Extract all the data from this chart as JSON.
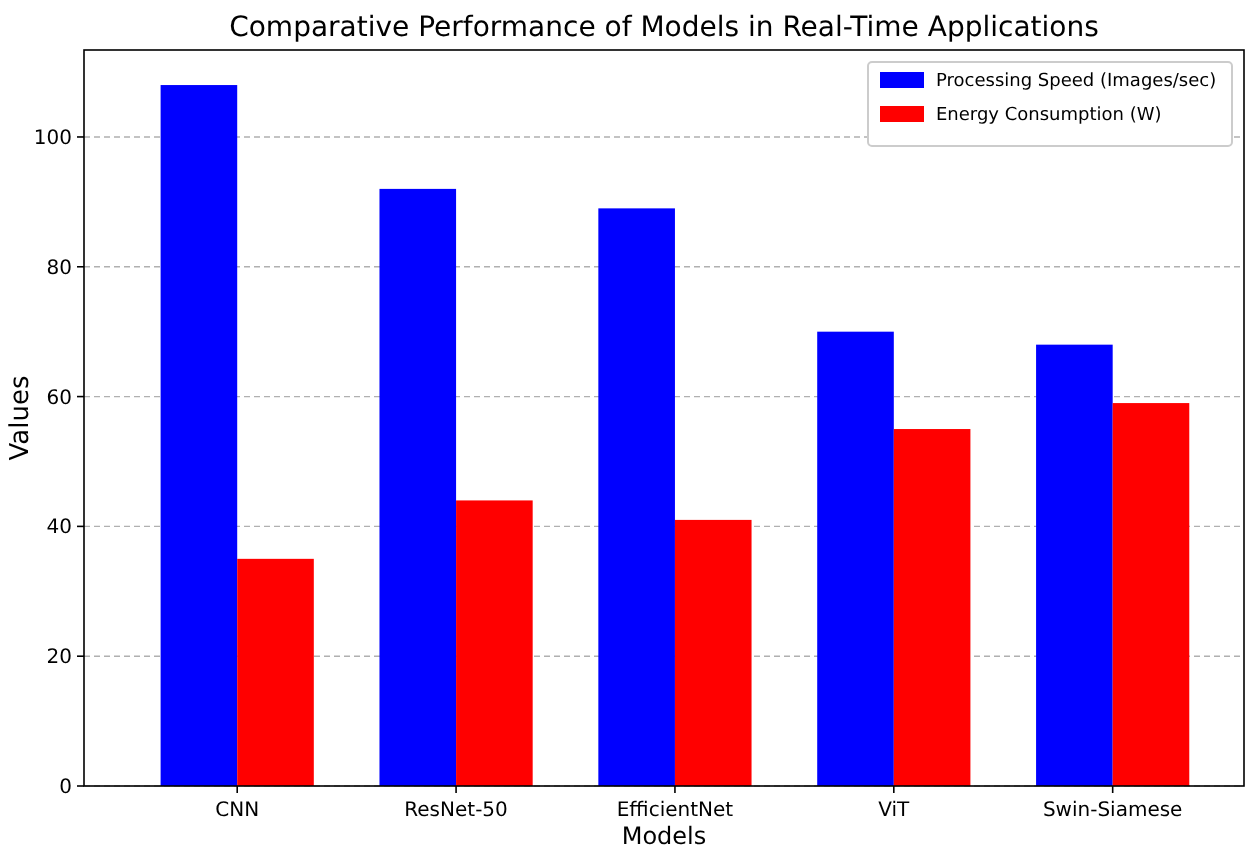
{
  "chart_data": {
    "type": "bar",
    "title": "Comparative Performance of Models in Real-Time Applications",
    "xlabel": "Models",
    "ylabel": "Values",
    "categories": [
      "CNN",
      "ResNet-50",
      "EfficientNet",
      "ViT",
      "Swin-Siamese"
    ],
    "series": [
      {
        "name": "Processing Speed (Images/sec)",
        "color": "#0000ff",
        "values": [
          108,
          92,
          89,
          70,
          68
        ]
      },
      {
        "name": "Energy Consumption (W)",
        "color": "#ff0000",
        "values": [
          35,
          44,
          41,
          55,
          59
        ]
      }
    ],
    "ylim": [
      0,
      113.4
    ],
    "yticks": [
      0,
      20,
      40,
      60,
      80,
      100
    ],
    "grid": "y",
    "legend": "top right"
  }
}
